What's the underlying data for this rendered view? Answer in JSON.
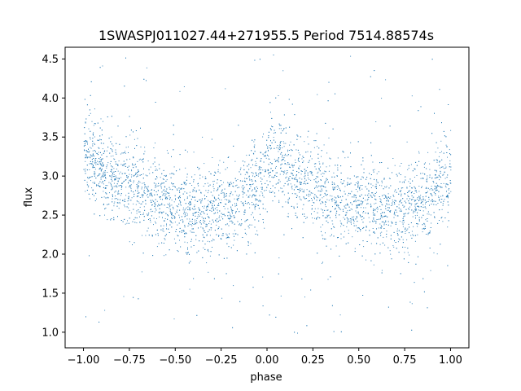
{
  "chart_data": {
    "type": "scatter",
    "title": "1SWASPJ011027.44+271955.5 Period 7514.88574s",
    "xlabel": "phase",
    "ylabel": "flux",
    "xlim": [
      -1.1,
      1.1
    ],
    "ylim": [
      0.8,
      4.65
    ],
    "xticks": [
      -1.0,
      -0.75,
      -0.5,
      -0.25,
      0.0,
      0.25,
      0.5,
      0.75,
      1.0
    ],
    "xtick_labels": [
      "−1.00",
      "−0.75",
      "−0.50",
      "−0.25",
      "0.00",
      "0.25",
      "0.50",
      "0.75",
      "1.00"
    ],
    "yticks": [
      1.0,
      1.5,
      2.0,
      2.5,
      3.0,
      3.5,
      4.0,
      4.5
    ],
    "ytick_labels": [
      "1.0",
      "1.5",
      "2.0",
      "2.5",
      "3.0",
      "3.5",
      "4.0",
      "4.5"
    ],
    "grid": false,
    "point_color": "#1f77b4",
    "x_range": [
      -1.0,
      1.0
    ],
    "profile_phase": [
      0.0,
      0.05,
      0.1,
      0.2,
      0.3,
      0.4,
      0.5,
      0.6,
      0.7,
      0.8,
      0.9,
      1.0
    ],
    "profile_flux": [
      3.2,
      3.25,
      3.1,
      2.95,
      2.85,
      2.7,
      2.6,
      2.55,
      2.55,
      2.6,
      2.8,
      3.05
    ],
    "scatter_sigma": 0.28
  }
}
